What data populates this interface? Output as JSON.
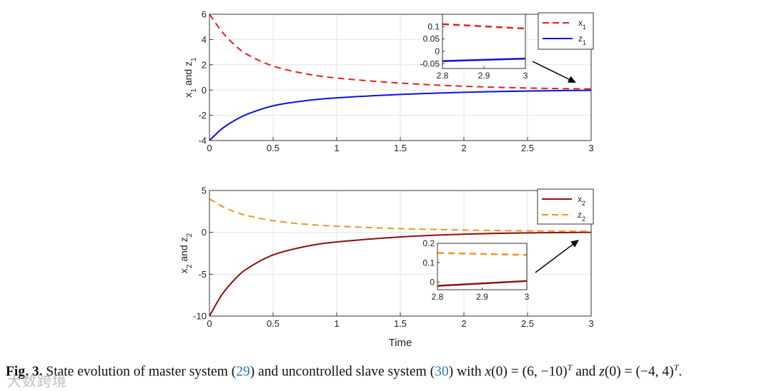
{
  "chart_data": [
    {
      "type": "line",
      "title": "",
      "xlabel": "",
      "ylabel_parts": [
        "x",
        "1",
        " and z",
        "1"
      ],
      "xlim": [
        0,
        3
      ],
      "ylim": [
        -4,
        6
      ],
      "xticks": [
        0,
        0.5,
        1,
        1.5,
        2,
        2.5,
        3
      ],
      "xtick_labels": [
        "0",
        "0.5",
        "1",
        "1.5",
        "2",
        "2.5",
        "3"
      ],
      "yticks": [
        -4,
        -2,
        0,
        2,
        4,
        6
      ],
      "ytick_labels": [
        "-4",
        "-2",
        "0",
        "2",
        "4",
        "6"
      ],
      "grid": true,
      "legend_position": "top-right",
      "series": [
        {
          "name": "x",
          "sub": "1",
          "color": "#e02020",
          "dash": true,
          "initial": 6,
          "final": 0.092,
          "x": [
            0,
            0.1,
            0.2,
            0.3,
            0.5,
            0.75,
            1,
            1.5,
            2,
            2.5,
            2.8,
            3
          ],
          "y": [
            6,
            4.6,
            3.55,
            2.8,
            1.9,
            1.3,
            0.95,
            0.55,
            0.3,
            0.16,
            0.11,
            0.09
          ]
        },
        {
          "name": "z",
          "sub": "1",
          "color": "#1010e0",
          "dash": false,
          "initial": -4,
          "final": -0.03,
          "x": [
            0,
            0.1,
            0.2,
            0.3,
            0.5,
            0.75,
            1,
            1.5,
            2,
            2.5,
            2.8,
            3
          ],
          "y": [
            -4,
            -3.05,
            -2.4,
            -1.9,
            -1.25,
            -0.85,
            -0.62,
            -0.35,
            -0.18,
            -0.08,
            -0.04,
            -0.025
          ]
        }
      ],
      "inset": {
        "xlim": [
          2.8,
          3
        ],
        "ylim": [
          -0.07,
          0.15
        ],
        "xticks": [
          2.8,
          2.9,
          3
        ],
        "xtick_labels": [
          "2.8",
          "2.9",
          "3"
        ],
        "yticks": [
          -0.05,
          0,
          0.05,
          0.1
        ],
        "ytick_labels": [
          "-0.05",
          "0",
          "0.05",
          "0.1"
        ]
      }
    },
    {
      "type": "line",
      "title": "",
      "xlabel": "Time",
      "ylabel_parts": [
        "x",
        "2",
        " and z",
        "2"
      ],
      "xlim": [
        0,
        3
      ],
      "ylim": [
        -10,
        5
      ],
      "xticks": [
        0,
        0.5,
        1,
        1.5,
        2,
        2.5,
        3
      ],
      "xtick_labels": [
        "0",
        "0.5",
        "1",
        "1.5",
        "2",
        "2.5",
        "3"
      ],
      "yticks": [
        -10,
        -5,
        0,
        5
      ],
      "ytick_labels": [
        "-10",
        "-5",
        "0",
        "5"
      ],
      "grid": true,
      "legend_position": "top-right",
      "series": [
        {
          "name": "x",
          "sub": "2",
          "color": "#8b1010",
          "dash": false,
          "initial": -10,
          "final": 0.005,
          "x": [
            0,
            0.1,
            0.2,
            0.3,
            0.5,
            0.75,
            1,
            1.5,
            2,
            2.5,
            2.8,
            3
          ],
          "y": [
            -10,
            -7.4,
            -5.6,
            -4.3,
            -2.7,
            -1.7,
            -1.15,
            -0.55,
            -0.22,
            -0.06,
            -0.02,
            0.005
          ]
        },
        {
          "name": "z",
          "sub": "2",
          "color": "#f0961e",
          "dash": true,
          "initial": 4,
          "final": 0.14,
          "x": [
            0,
            0.1,
            0.2,
            0.3,
            0.5,
            0.75,
            1,
            1.5,
            2,
            2.5,
            2.8,
            3
          ],
          "y": [
            4,
            3.1,
            2.45,
            2.0,
            1.4,
            0.98,
            0.74,
            0.45,
            0.28,
            0.18,
            0.15,
            0.14
          ]
        }
      ],
      "inset": {
        "xlim": [
          2.8,
          3
        ],
        "ylim": [
          -0.04,
          0.2
        ],
        "xticks": [
          2.8,
          2.9,
          3
        ],
        "xtick_labels": [
          "2.8",
          "2.9",
          "3"
        ],
        "yticks": [
          0,
          0.1,
          0.2
        ],
        "ytick_labels": [
          "0",
          "0.1",
          "0.2"
        ]
      }
    }
  ],
  "caption": {
    "label": "Fig. 3.",
    "t1": " State evolution of master system (",
    "ref1": "29",
    "t2": ") and uncontrolled slave system (",
    "ref2": "30",
    "t3": ") with ",
    "m1": "x",
    "m2": "(0) = (6, −10)",
    "sup1": "T",
    "t4": " and ",
    "m3": "z",
    "m4": "(0) = (−4, 4)",
    "sup2": "T",
    "t5": "."
  },
  "watermark": "大数跨境"
}
